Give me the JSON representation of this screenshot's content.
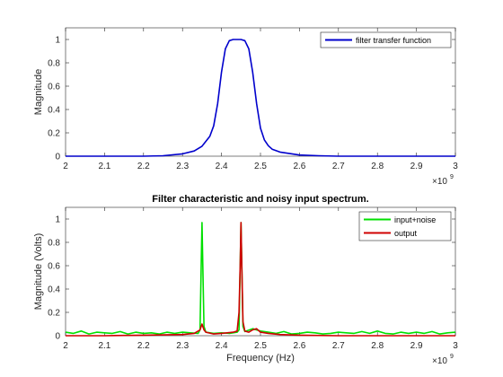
{
  "chart_data": [
    {
      "type": "line",
      "title": "",
      "xlabel": "",
      "ylabel": "Magnitude",
      "xlim": [
        2000000000,
        3000000000
      ],
      "ylim": [
        0,
        1.1
      ],
      "x_exponent_label": "×10",
      "x_exponent": "9",
      "xticks": [
        2,
        2.1,
        2.2,
        2.3,
        2.4,
        2.5,
        2.6,
        2.7,
        2.8,
        2.9,
        3
      ],
      "xtick_labels": [
        "2",
        "2.1",
        "2.2",
        "2.3",
        "2.4",
        "2.5",
        "2.6",
        "2.7",
        "2.8",
        "2.9",
        "3"
      ],
      "yticks": [
        0,
        0.2,
        0.4,
        0.6,
        0.8,
        1
      ],
      "ytick_labels": [
        "0",
        "0.2",
        "0.4",
        "0.6",
        "0.8",
        "1"
      ],
      "legend_position": "top-right",
      "grid": false,
      "series": [
        {
          "name": "filter transfer function",
          "color": "#0000cc",
          "x": [
            2.0,
            2.2,
            2.25,
            2.3,
            2.33,
            2.35,
            2.37,
            2.38,
            2.39,
            2.4,
            2.41,
            2.42,
            2.43,
            2.45,
            2.46,
            2.47,
            2.48,
            2.49,
            2.5,
            2.51,
            2.52,
            2.53,
            2.55,
            2.6,
            2.65,
            2.7,
            3.0
          ],
          "y": [
            0.0,
            0.0,
            0.004,
            0.02,
            0.045,
            0.085,
            0.17,
            0.26,
            0.45,
            0.72,
            0.92,
            0.99,
            1.0,
            1.0,
            0.99,
            0.92,
            0.72,
            0.45,
            0.24,
            0.14,
            0.09,
            0.06,
            0.035,
            0.01,
            0.004,
            0.0,
            0.0
          ]
        }
      ]
    },
    {
      "type": "line",
      "title": "Filter characteristic and noisy input spectrum.",
      "xlabel": "Frequency (Hz)",
      "ylabel": "Magnitude (Volts)",
      "xlim": [
        2000000000,
        3000000000
      ],
      "ylim": [
        0,
        1.1
      ],
      "x_exponent_label": "×10",
      "x_exponent": "9",
      "xticks": [
        2,
        2.1,
        2.2,
        2.3,
        2.4,
        2.5,
        2.6,
        2.7,
        2.8,
        2.9,
        3
      ],
      "xtick_labels": [
        "2",
        "2.1",
        "2.2",
        "2.3",
        "2.4",
        "2.5",
        "2.6",
        "2.7",
        "2.8",
        "2.9",
        "3"
      ],
      "yticks": [
        0,
        0.2,
        0.4,
        0.6,
        0.8,
        1
      ],
      "ytick_labels": [
        "0",
        "0.2",
        "0.4",
        "0.6",
        "0.8",
        "1"
      ],
      "legend_position": "top-right",
      "grid": false,
      "series": [
        {
          "name": "input+noise",
          "color": "#00e000",
          "x": [
            2.0,
            2.02,
            2.04,
            2.06,
            2.08,
            2.1,
            2.12,
            2.14,
            2.16,
            2.18,
            2.2,
            2.22,
            2.24,
            2.26,
            2.28,
            2.3,
            2.32,
            2.34,
            2.345,
            2.348,
            2.35,
            2.352,
            2.355,
            2.36,
            2.38,
            2.4,
            2.42,
            2.44,
            2.445,
            2.448,
            2.45,
            2.452,
            2.455,
            2.46,
            2.48,
            2.5,
            2.52,
            2.54,
            2.56,
            2.58,
            2.6,
            2.62,
            2.64,
            2.66,
            2.68,
            2.7,
            2.72,
            2.74,
            2.76,
            2.78,
            2.8,
            2.82,
            2.84,
            2.86,
            2.88,
            2.9,
            2.92,
            2.94,
            2.96,
            2.98,
            3.0
          ],
          "y": [
            0.03,
            0.02,
            0.04,
            0.015,
            0.03,
            0.025,
            0.02,
            0.035,
            0.015,
            0.03,
            0.02,
            0.025,
            0.015,
            0.03,
            0.02,
            0.03,
            0.025,
            0.02,
            0.05,
            0.6,
            0.97,
            0.6,
            0.08,
            0.03,
            0.02,
            0.025,
            0.02,
            0.03,
            0.05,
            0.6,
            0.97,
            0.6,
            0.08,
            0.035,
            0.06,
            0.04,
            0.03,
            0.02,
            0.035,
            0.015,
            0.02,
            0.03,
            0.025,
            0.015,
            0.02,
            0.03,
            0.025,
            0.02,
            0.035,
            0.02,
            0.04,
            0.02,
            0.015,
            0.03,
            0.02,
            0.03,
            0.02,
            0.035,
            0.015,
            0.025,
            0.03
          ]
        },
        {
          "name": "output",
          "color": "#d00000",
          "x": [
            2.0,
            2.1,
            2.2,
            2.3,
            2.33,
            2.345,
            2.35,
            2.355,
            2.36,
            2.38,
            2.4,
            2.43,
            2.44,
            2.445,
            2.448,
            2.45,
            2.452,
            2.455,
            2.46,
            2.47,
            2.48,
            2.49,
            2.5,
            2.52,
            2.55,
            2.6,
            2.7,
            2.8,
            2.9,
            3.0
          ],
          "y": [
            0.0,
            0.0,
            0.005,
            0.01,
            0.02,
            0.05,
            0.1,
            0.05,
            0.03,
            0.015,
            0.02,
            0.03,
            0.04,
            0.2,
            0.6,
            0.97,
            0.6,
            0.12,
            0.04,
            0.03,
            0.05,
            0.06,
            0.03,
            0.02,
            0.01,
            0.005,
            0.0,
            0.0,
            0.0,
            0.0
          ]
        }
      ]
    }
  ]
}
